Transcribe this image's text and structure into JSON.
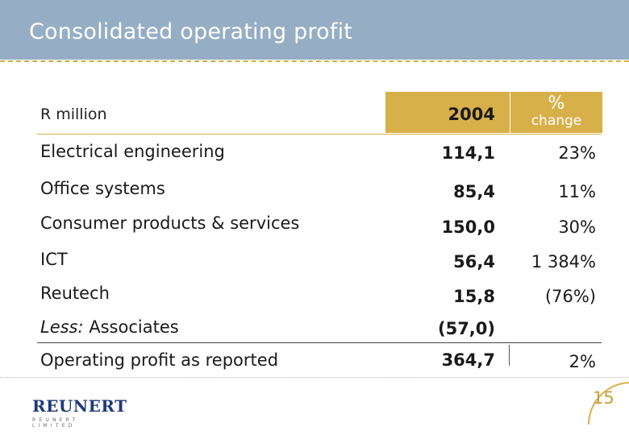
{
  "slide": {
    "title": "Consolidated operating profit",
    "unit_label": "R million",
    "column_year": "2004",
    "column_pct_symbol": "%",
    "column_pct_word": "change",
    "rows": [
      {
        "label": "Electrical engineering",
        "value": "114,1",
        "pct": "23%"
      },
      {
        "label": "Office systems",
        "value": "85,4",
        "pct": "11%"
      },
      {
        "label": "Consumer products & services",
        "value": "150,0",
        "pct": "30%"
      },
      {
        "label": "ICT",
        "value": "56,4",
        "pct": "1 384%"
      },
      {
        "label": "Reutech",
        "value": "15,8",
        "pct": "(76%)"
      },
      {
        "label_italic": "Less:",
        "label_rest": " Associates",
        "value": "(57,0)",
        "pct": ""
      },
      {
        "label": "Operating profit as reported",
        "value": "364,7",
        "pct": "2%"
      }
    ],
    "page_number": "15"
  },
  "logo": {
    "name": "REUNERT",
    "subtitle": "REUNERT LIMITED"
  },
  "colors": {
    "header_bg": "#95aec4",
    "accent_gold": "#d8b04a",
    "logo_blue": "#1e3a78"
  }
}
